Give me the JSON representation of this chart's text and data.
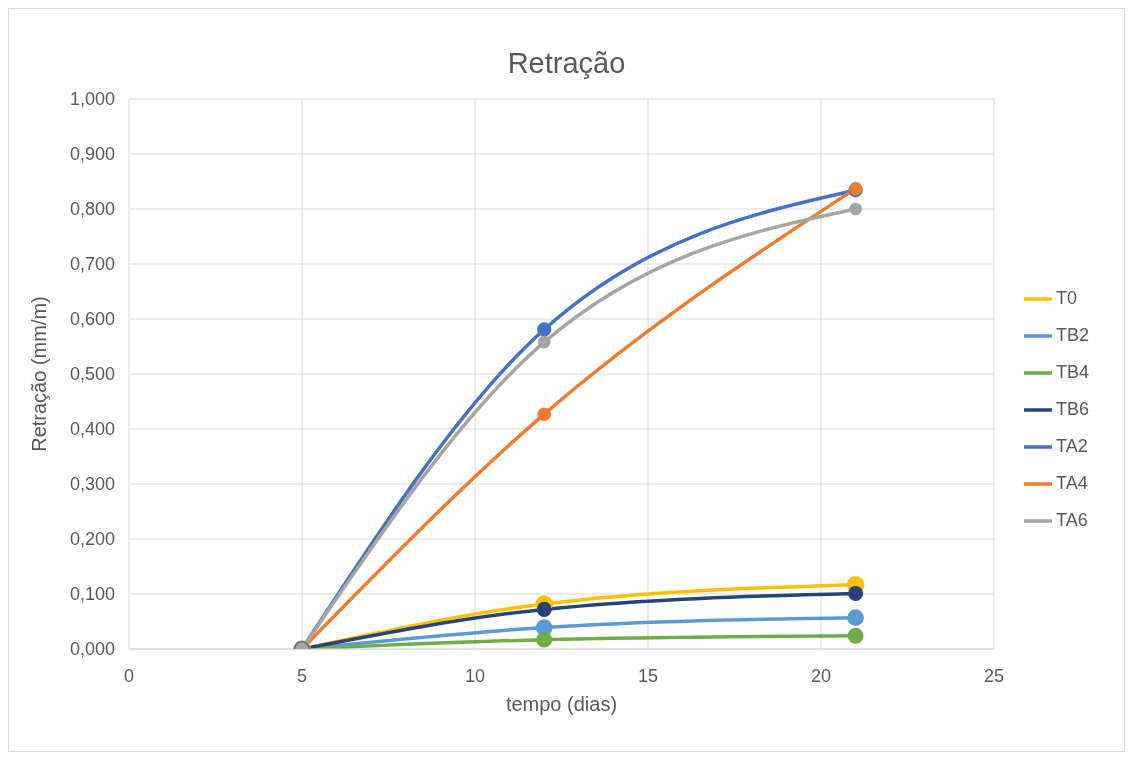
{
  "chart_data": {
    "type": "line",
    "title": "Retração",
    "xlabel": "tempo  (dias)",
    "ylabel": "Retração (mm/m)",
    "x": [
      5,
      12,
      21
    ],
    "series": [
      {
        "name": "T0",
        "color": "#ffc000",
        "values": [
          0,
          0.082,
          0.117
        ]
      },
      {
        "name": "TB2",
        "color": "#5b9bd5",
        "values": [
          0,
          0.039,
          0.057
        ]
      },
      {
        "name": "TB4",
        "color": "#70ad47",
        "values": [
          0,
          0.017,
          0.024
        ]
      },
      {
        "name": "TB6",
        "color": "#264478",
        "values": [
          0,
          0.072,
          0.101
        ]
      },
      {
        "name": "TA2",
        "color": "#4472c4",
        "values": [
          0,
          0.581,
          0.834
        ]
      },
      {
        "name": "TA4",
        "color": "#ed7d31",
        "values": [
          0,
          0.427,
          0.837
        ]
      },
      {
        "name": "TA6",
        "color": "#a5a5a5",
        "values": [
          0,
          0.558,
          0.8
        ]
      }
    ],
    "xlim": [
      0,
      25
    ],
    "xticks": [
      0,
      5,
      10,
      15,
      20,
      25
    ],
    "ylim": [
      0,
      1
    ],
    "yticks": [
      {
        "value": 0,
        "label": "0,000"
      },
      {
        "value": 0.1,
        "label": "0,100"
      },
      {
        "value": 0.2,
        "label": "0,200"
      },
      {
        "value": 0.3,
        "label": "0,300"
      },
      {
        "value": 0.4,
        "label": "0,400"
      },
      {
        "value": 0.5,
        "label": "0,500"
      },
      {
        "value": 0.6,
        "label": "0,600"
      },
      {
        "value": 0.7,
        "label": "0,700"
      },
      {
        "value": 0.8,
        "label": "0,800"
      },
      {
        "value": 0.9,
        "label": "0,900"
      },
      {
        "value": 1,
        "label": "1,000"
      }
    ],
    "grid": true,
    "legend": "right",
    "marker": "circle",
    "line_style": "solid"
  }
}
